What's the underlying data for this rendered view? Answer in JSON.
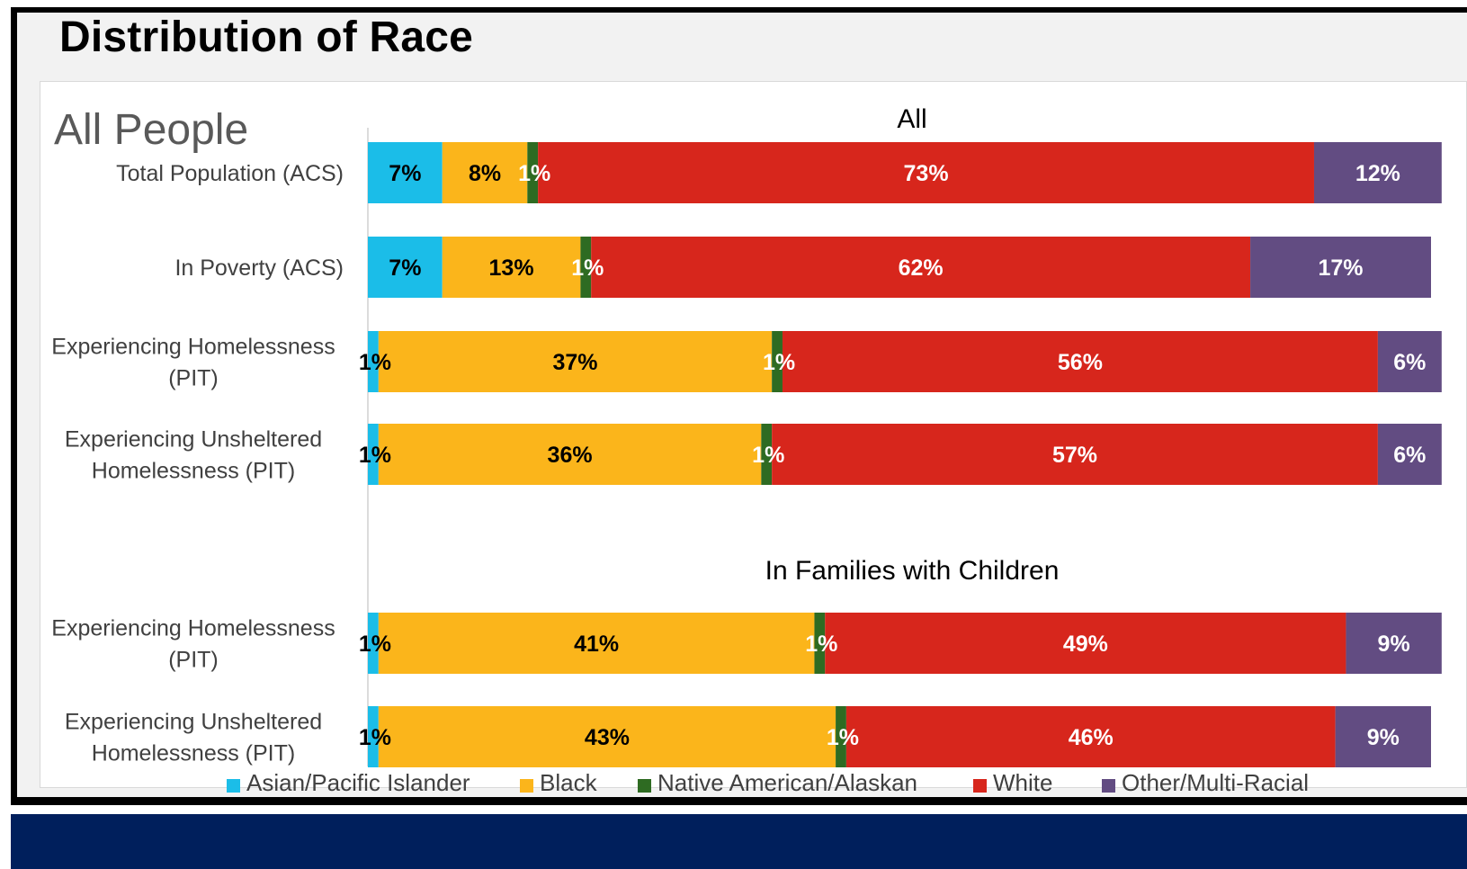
{
  "page": {
    "heading": "Distribution of Race",
    "panel_title": "All People"
  },
  "colors": {
    "asian": "#1bbde8",
    "black": "#fbb51b",
    "native": "#2e6b22",
    "white": "#d7261c",
    "other": "#624c82"
  },
  "chart_data": {
    "type": "bar",
    "orientation": "horizontal",
    "stacked": true,
    "percent": true,
    "groups": [
      {
        "title": "All",
        "rows": [
          {
            "label": [
              "Total Population (ACS)"
            ],
            "values": [
              7,
              8,
              1,
              73,
              12
            ]
          },
          {
            "label": [
              "In Poverty (ACS)"
            ],
            "values": [
              7,
              13,
              1,
              62,
              17
            ]
          },
          {
            "label": [
              "Experiencing Homelessness",
              "(PIT)"
            ],
            "values": [
              1,
              37,
              1,
              56,
              6
            ]
          },
          {
            "label": [
              "Experiencing Unsheltered",
              "Homelessness (PIT)"
            ],
            "values": [
              1,
              36,
              1,
              57,
              6
            ]
          }
        ]
      },
      {
        "title": "In Families with Children",
        "rows": [
          {
            "label": [
              "Experiencing Homelessness",
              "(PIT)"
            ],
            "values": [
              1,
              41,
              1,
              49,
              9
            ]
          },
          {
            "label": [
              "Experiencing Unsheltered",
              "Homelessness (PIT)"
            ],
            "values": [
              1,
              43,
              1,
              46,
              9
            ]
          }
        ]
      }
    ],
    "series": [
      {
        "name": "Asian/Pacific Islander",
        "color": "#1bbde8",
        "label_color": "#000000"
      },
      {
        "name": "Black",
        "color": "#fbb51b",
        "label_color": "#000000"
      },
      {
        "name": "Native American/Alaskan",
        "color": "#2e6b22",
        "label_color": "#ffffff"
      },
      {
        "name": "White",
        "color": "#d7261c",
        "label_color": "#ffffff"
      },
      {
        "name": "Other/Multi-Racial",
        "color": "#624c82",
        "label_color": "#ffffff"
      }
    ],
    "xlim": [
      0,
      100
    ],
    "grid": false,
    "legend_position": "bottom"
  }
}
